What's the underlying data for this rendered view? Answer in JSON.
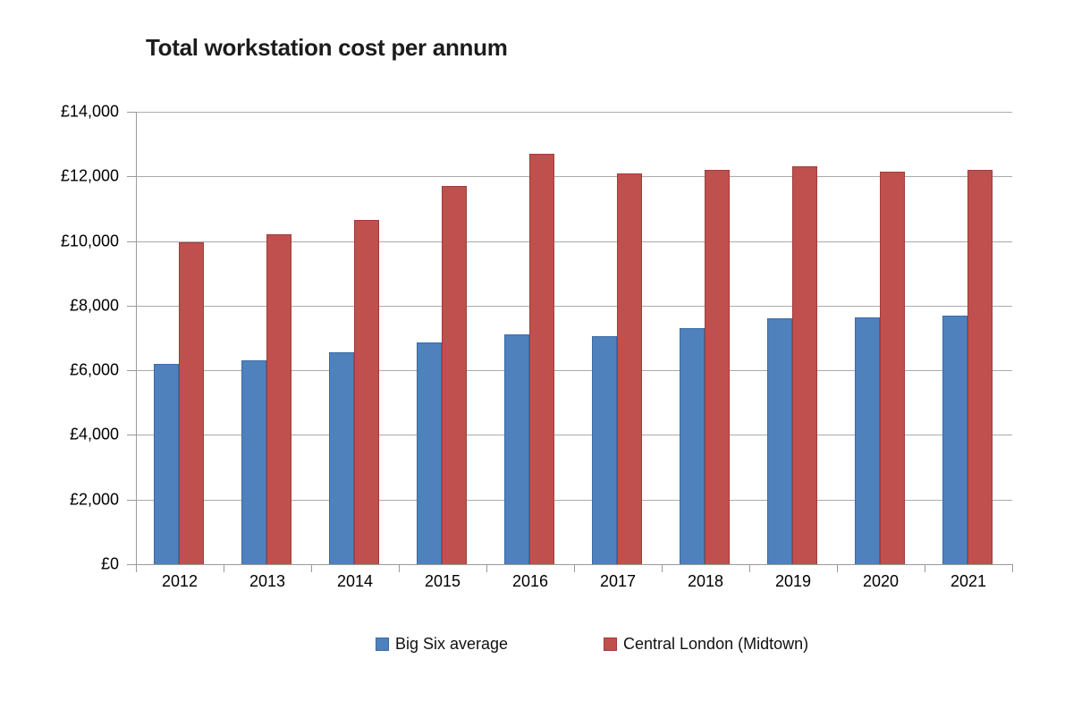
{
  "chart_data": {
    "type": "bar",
    "title": "Total workstation cost per annum",
    "categories": [
      "2012",
      "2013",
      "2014",
      "2015",
      "2016",
      "2017",
      "2018",
      "2019",
      "2020",
      "2021"
    ],
    "series": [
      {
        "name": "Big Six average",
        "color": "#4f81bd",
        "border_color": "#3a6ba5",
        "values": [
          6200,
          6300,
          6550,
          6850,
          7100,
          7050,
          7300,
          7600,
          7650,
          7700
        ]
      },
      {
        "name": "Central London (Midtown)",
        "color": "#c0504d",
        "border_color": "#a03c3a",
        "values": [
          9950,
          10200,
          10650,
          11700,
          12700,
          12100,
          12200,
          12300,
          12150,
          12200
        ]
      }
    ],
    "y_axis": {
      "min": 0,
      "max": 14000,
      "step": 2000,
      "tick_labels": [
        "£0",
        "£2,000",
        "£4,000",
        "£6,000",
        "£8,000",
        "£10,000",
        "£12,000",
        "£14,000"
      ]
    },
    "xlabel": "",
    "ylabel": "",
    "grid": true,
    "legend_position": "bottom",
    "colors": {
      "gridline": "#ababab",
      "axis": "#9a9a9a",
      "background": "#ffffff"
    }
  }
}
